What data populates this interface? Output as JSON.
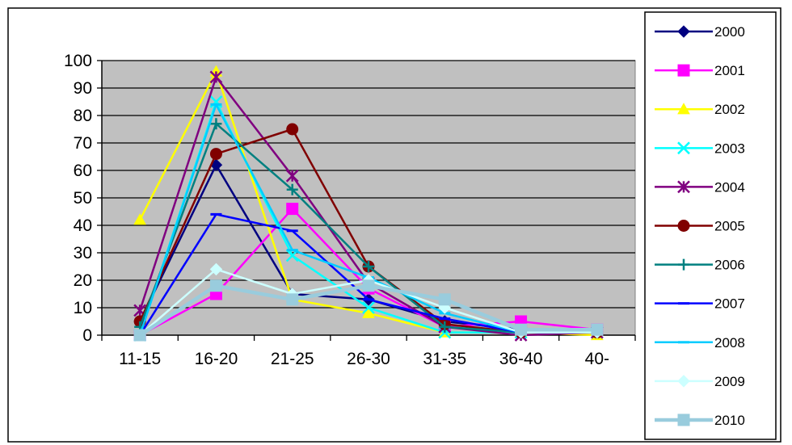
{
  "chart_data": {
    "type": "line",
    "categories": [
      "11-15",
      "16-20",
      "21-25",
      "26-30",
      "31-35",
      "36-40",
      "40-"
    ],
    "ylim": [
      0,
      100
    ],
    "yticks": [
      0,
      10,
      20,
      30,
      40,
      50,
      60,
      70,
      80,
      90,
      100
    ],
    "grid": true,
    "plot_background": "#c0c0c0",
    "legend_position": "right",
    "series": [
      {
        "name": "2000",
        "color": "#000080",
        "marker": "diamond",
        "values": [
          5,
          62,
          15,
          13,
          5,
          2,
          1
        ]
      },
      {
        "name": "2001",
        "color": "#ff00ff",
        "marker": "square",
        "values": [
          0,
          15,
          46,
          17,
          3,
          5,
          2
        ]
      },
      {
        "name": "2002",
        "color": "#ffff00",
        "marker": "triangle",
        "values": [
          42,
          96,
          13,
          8,
          1,
          1,
          0
        ]
      },
      {
        "name": "2003",
        "color": "#00ffff",
        "marker": "x",
        "values": [
          0,
          85,
          29,
          10,
          1,
          1,
          1
        ]
      },
      {
        "name": "2004",
        "color": "#800080",
        "marker": "star",
        "values": [
          9,
          94,
          58,
          19,
          3,
          0,
          1
        ]
      },
      {
        "name": "2005",
        "color": "#800000",
        "marker": "circle",
        "values": [
          5,
          66,
          75,
          25,
          4,
          1,
          1
        ]
      },
      {
        "name": "2006",
        "color": "#008080",
        "marker": "plus",
        "values": [
          3,
          77,
          53,
          25,
          3,
          1,
          1
        ]
      },
      {
        "name": "2007",
        "color": "#0000ff",
        "marker": "dash",
        "values": [
          0,
          44,
          38,
          13,
          6,
          1,
          1
        ]
      },
      {
        "name": "2008",
        "color": "#00ccff",
        "marker": "dash",
        "values": [
          0,
          84,
          31,
          21,
          8,
          1,
          1
        ]
      },
      {
        "name": "2009",
        "color": "#ccffff",
        "marker": "diamond",
        "values": [
          0,
          24,
          15,
          20,
          10,
          1,
          1
        ]
      },
      {
        "name": "2010",
        "color": "#99ccdd",
        "marker": "square",
        "values": [
          0,
          18,
          13,
          18,
          13,
          2,
          2
        ]
      }
    ]
  }
}
